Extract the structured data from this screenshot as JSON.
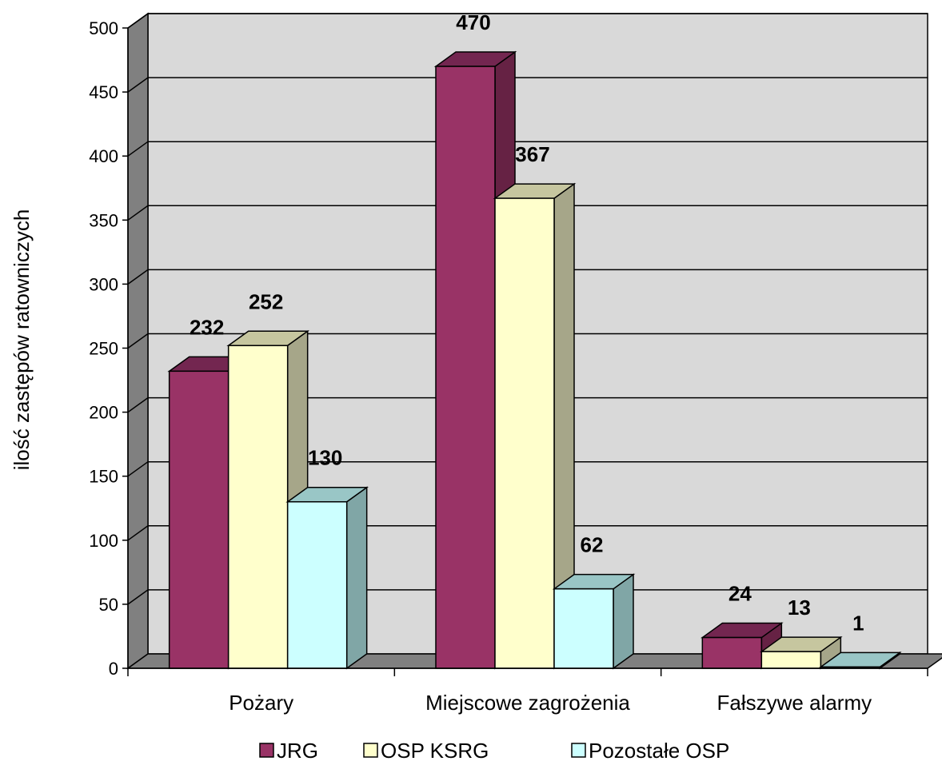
{
  "chart_data": {
    "type": "bar",
    "style": "3d-clustered-column",
    "categories": [
      "Pożary",
      "Miejscowe zagrożenia",
      "Fałszywe alarmy"
    ],
    "series": [
      {
        "name": "JRG",
        "values": [
          232,
          470,
          24
        ],
        "color": "#993366",
        "side_color": "#662244",
        "top_color": "#732650"
      },
      {
        "name": "OSP KSRG",
        "values": [
          252,
          367,
          13
        ],
        "color": "#FFFFCC",
        "side_color": "#A6A689",
        "top_color": "#C6C69F"
      },
      {
        "name": "Pozostałe OSP",
        "values": [
          130,
          62,
          1
        ],
        "color": "#CCFFFF",
        "side_color": "#80A6A6",
        "top_color": "#99C6C6"
      }
    ],
    "ylabel": "ilość zastępów ratowniczych",
    "xlabel": "",
    "ylim": [
      0,
      500
    ],
    "yticks": [
      0,
      50,
      100,
      150,
      200,
      250,
      300,
      350,
      400,
      450,
      500
    ],
    "grid": true,
    "wall_color": "#D9D9D9",
    "floor_color": "#808080",
    "legend_position": "bottom"
  }
}
